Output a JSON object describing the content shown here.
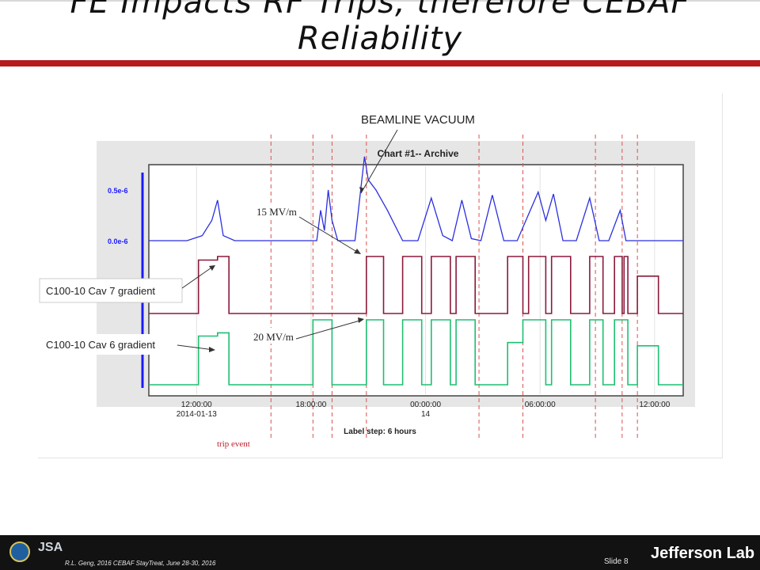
{
  "slide": {
    "title": "FE Impacts RF Trips, therefore CEBAF\nReliability",
    "footer_text": "R.L. Geng, 2016 CEBAF StayTreat, June 28-30, 2016",
    "slide_number": "Slide 8",
    "logos": {
      "doe": "DOE seal",
      "jsa": "JSA",
      "jlab": "Jefferson Lab"
    }
  },
  "annotations": {
    "beamline_vacuum": "BEAMLINE VACUUM",
    "cav7": "C100-10 Cav 7 gradient",
    "cav6": "C100-10 Cav 6 gradient",
    "mvm15": "15 MV/m",
    "mvm20": "20 MV/m",
    "trip_event": "trip event"
  },
  "chart_data": {
    "type": "line",
    "title": "Chart #1-- Archive",
    "x_tick_labels": [
      [
        "12:00:00",
        "2014-01-13"
      ],
      [
        "18:00:00",
        ""
      ],
      [
        "00:00:00",
        "14"
      ],
      [
        "06:00:00",
        ""
      ],
      [
        "12:00:00",
        ""
      ]
    ],
    "x_tick_hours": [
      12,
      18,
      24,
      30,
      36
    ],
    "x_range_hours": [
      9.5,
      37.5
    ],
    "y_tick_labels": [
      "0.5e-6",
      "0.0e-6"
    ],
    "xlabel": "Label step: 6 hours",
    "trip_event_hours": [
      15.9,
      18.1,
      19.1,
      20.9,
      26.8,
      29.1,
      32.9,
      34.3,
      35.1
    ],
    "series": [
      {
        "color": "#2b2fe0",
        "points": [
          [
            9.5,
            0.0
          ],
          [
            11.5,
            0.0
          ],
          [
            12.3,
            0.05
          ],
          [
            12.8,
            0.2
          ],
          [
            13.1,
            0.4
          ],
          [
            13.4,
            0.05
          ],
          [
            14,
            0.0
          ],
          [
            18.3,
            0.0
          ],
          [
            18.5,
            0.3
          ],
          [
            18.7,
            0.1
          ],
          [
            18.9,
            0.5
          ],
          [
            19.1,
            0.2
          ],
          [
            19.4,
            0.0
          ],
          [
            20.3,
            0.0
          ],
          [
            20.6,
            0.5
          ],
          [
            20.8,
            0.83
          ],
          [
            21.0,
            0.6
          ],
          [
            21.4,
            0.5
          ],
          [
            22.0,
            0.3
          ],
          [
            22.8,
            0.0
          ],
          [
            23.6,
            0.0
          ],
          [
            24.3,
            0.42
          ],
          [
            24.9,
            0.05
          ],
          [
            25.4,
            0.0
          ],
          [
            25.9,
            0.4
          ],
          [
            26.4,
            0.02
          ],
          [
            26.9,
            0.0
          ],
          [
            27.5,
            0.45
          ],
          [
            28.1,
            0.0
          ],
          [
            28.8,
            0.0
          ],
          [
            29.9,
            0.48
          ],
          [
            30.3,
            0.2
          ],
          [
            30.7,
            0.46
          ],
          [
            31.2,
            0.0
          ],
          [
            31.9,
            0.0
          ],
          [
            32.6,
            0.42
          ],
          [
            33.1,
            0.0
          ],
          [
            33.6,
            0.0
          ],
          [
            34.2,
            0.3
          ],
          [
            34.5,
            0.0
          ],
          [
            37.5,
            0.0
          ]
        ]
      },
      {
        "color": "#8b1a3a",
        "points": [
          [
            9.5,
            0
          ],
          [
            12.1,
            0
          ],
          [
            12.1,
            15
          ],
          [
            13.1,
            15
          ],
          [
            13.1,
            16
          ],
          [
            13.7,
            16
          ],
          [
            13.7,
            0
          ],
          [
            20.9,
            0
          ],
          [
            20.9,
            16
          ],
          [
            21.8,
            16
          ],
          [
            21.8,
            0
          ],
          [
            22.8,
            0
          ],
          [
            22.8,
            16
          ],
          [
            23.8,
            16
          ],
          [
            23.8,
            0
          ],
          [
            24.3,
            0
          ],
          [
            24.3,
            16
          ],
          [
            25.3,
            16
          ],
          [
            25.3,
            0
          ],
          [
            25.6,
            0
          ],
          [
            25.6,
            16
          ],
          [
            26.6,
            16
          ],
          [
            26.6,
            0
          ],
          [
            28.3,
            0
          ],
          [
            28.3,
            16
          ],
          [
            29.1,
            16
          ],
          [
            29.1,
            0
          ],
          [
            29.4,
            0
          ],
          [
            29.4,
            16
          ],
          [
            30.3,
            16
          ],
          [
            30.3,
            0
          ],
          [
            30.6,
            0
          ],
          [
            30.6,
            16
          ],
          [
            31.6,
            16
          ],
          [
            31.6,
            0
          ],
          [
            32.6,
            0
          ],
          [
            32.6,
            16
          ],
          [
            33.3,
            16
          ],
          [
            33.3,
            0
          ],
          [
            33.9,
            0
          ],
          [
            33.9,
            16
          ],
          [
            34.3,
            16
          ],
          [
            34.3,
            0
          ],
          [
            34.4,
            0
          ],
          [
            34.4,
            16
          ],
          [
            34.6,
            16
          ],
          [
            34.6,
            0
          ],
          [
            35.1,
            0
          ],
          [
            35.1,
            10.5
          ],
          [
            36.2,
            10.5
          ],
          [
            36.2,
            0
          ],
          [
            37.5,
            0
          ]
        ]
      },
      {
        "color": "#1fbf72",
        "points": [
          [
            9.5,
            0
          ],
          [
            12.1,
            0
          ],
          [
            12.1,
            15
          ],
          [
            13.1,
            15
          ],
          [
            13.1,
            16
          ],
          [
            13.7,
            16
          ],
          [
            13.7,
            0
          ],
          [
            18.1,
            0
          ],
          [
            18.1,
            20
          ],
          [
            19.1,
            20
          ],
          [
            19.1,
            0
          ],
          [
            20.9,
            0
          ],
          [
            20.9,
            20
          ],
          [
            21.8,
            20
          ],
          [
            21.8,
            0
          ],
          [
            22.8,
            0
          ],
          [
            22.8,
            20
          ],
          [
            23.8,
            20
          ],
          [
            23.8,
            0
          ],
          [
            24.3,
            0
          ],
          [
            24.3,
            20
          ],
          [
            25.3,
            20
          ],
          [
            25.3,
            0
          ],
          [
            25.6,
            0
          ],
          [
            25.6,
            20
          ],
          [
            26.6,
            20
          ],
          [
            26.6,
            0
          ],
          [
            28.3,
            0
          ],
          [
            28.3,
            13
          ],
          [
            29.1,
            13
          ],
          [
            29.1,
            20
          ],
          [
            30.3,
            20
          ],
          [
            30.3,
            0
          ],
          [
            30.6,
            0
          ],
          [
            30.6,
            20
          ],
          [
            31.6,
            20
          ],
          [
            31.6,
            0
          ],
          [
            32.6,
            0
          ],
          [
            32.6,
            20
          ],
          [
            33.3,
            20
          ],
          [
            33.3,
            0
          ],
          [
            33.9,
            0
          ],
          [
            33.9,
            20
          ],
          [
            34.6,
            20
          ],
          [
            34.6,
            0
          ],
          [
            35.1,
            0
          ],
          [
            35.1,
            12
          ],
          [
            36.2,
            12
          ],
          [
            36.2,
            0
          ],
          [
            37.5,
            0
          ]
        ]
      }
    ],
    "grid": "on"
  }
}
